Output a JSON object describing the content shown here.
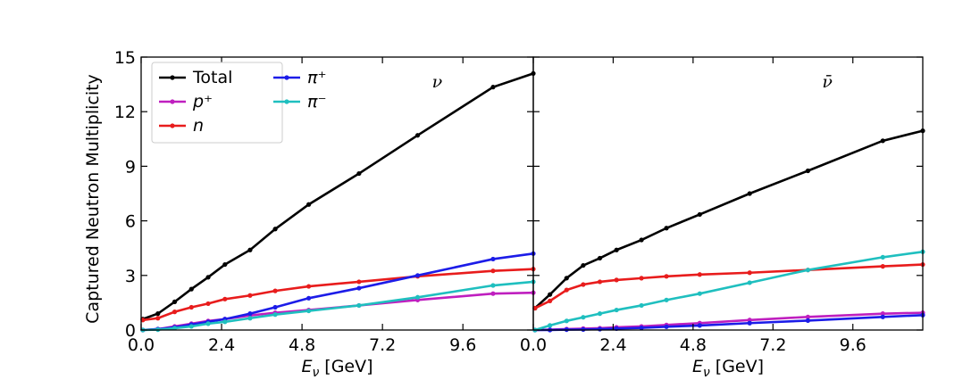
{
  "chart_data": [
    {
      "type": "line",
      "ylabel": "Captured Neutron Multiplicity",
      "xlabel_symbol": "E",
      "xlabel_subscript": "ν",
      "xlabel_unit": "[GeV]",
      "annotation": "ν",
      "legend": "upper left",
      "xlim": [
        0,
        11.7
      ],
      "ylim": [
        0,
        15
      ],
      "xticks": [
        {
          "value": 0,
          "label": "0.0"
        },
        2.4,
        4.8,
        7.2,
        9.6
      ],
      "yticks": [
        0,
        3,
        6,
        9,
        12,
        15
      ],
      "x": [
        0.05,
        0.5,
        1.0,
        1.5,
        2.0,
        2.5,
        3.25,
        4.0,
        5.0,
        6.5,
        8.25,
        10.5,
        11.7
      ],
      "series": [
        {
          "name": "Total",
          "color": "#000000",
          "values": [
            0.6,
            0.9,
            1.55,
            2.25,
            2.9,
            3.6,
            4.4,
            5.55,
            6.9,
            8.6,
            10.7,
            13.35,
            14.1
          ]
        },
        {
          "name": "p⁺",
          "color": "#bf1fbf",
          "values": [
            0,
            0.05,
            0.2,
            0.35,
            0.5,
            0.6,
            0.8,
            0.95,
            1.1,
            1.35,
            1.65,
            2.0,
            2.05
          ]
        },
        {
          "name": "n",
          "color": "#e81c1c",
          "values": [
            0.55,
            0.65,
            1.0,
            1.25,
            1.45,
            1.7,
            1.9,
            2.15,
            2.4,
            2.65,
            2.95,
            3.25,
            3.35
          ]
        },
        {
          "name": "π⁺",
          "color": "#1c1ce8",
          "values": [
            0,
            0.05,
            0.15,
            0.3,
            0.45,
            0.6,
            0.9,
            1.25,
            1.75,
            2.3,
            3.0,
            3.9,
            4.2
          ]
        },
        {
          "name": "π⁻",
          "color": "#1fbfbf",
          "values": [
            0,
            0.02,
            0.1,
            0.2,
            0.35,
            0.45,
            0.65,
            0.85,
            1.05,
            1.35,
            1.8,
            2.45,
            2.65
          ]
        }
      ]
    },
    {
      "type": "line",
      "xlabel_symbol": "E",
      "xlabel_subscript": "ν",
      "xlabel_unit": "[GeV]",
      "annotation": "ν̄",
      "xlim": [
        0,
        11.7
      ],
      "ylim": [
        0,
        15
      ],
      "xticks": [
        {
          "value": 0,
          "label": "0.0"
        },
        2.4,
        4.8,
        7.2,
        9.6
      ],
      "x": [
        0.05,
        0.5,
        1.0,
        1.5,
        2.0,
        2.5,
        3.25,
        4.0,
        5.0,
        6.5,
        8.25,
        10.5,
        11.7
      ],
      "series": [
        {
          "name": "Total",
          "color": "#000000",
          "values": [
            1.2,
            1.95,
            2.85,
            3.55,
            3.95,
            4.4,
            4.95,
            5.6,
            6.35,
            7.5,
            8.75,
            10.4,
            10.95
          ]
        },
        {
          "name": "p⁺",
          "color": "#bf1fbf",
          "values": [
            0,
            0.02,
            0.05,
            0.08,
            0.1,
            0.15,
            0.2,
            0.28,
            0.38,
            0.55,
            0.72,
            0.9,
            0.95
          ]
        },
        {
          "name": "n",
          "color": "#e81c1c",
          "values": [
            1.2,
            1.6,
            2.2,
            2.5,
            2.65,
            2.75,
            2.85,
            2.95,
            3.05,
            3.15,
            3.3,
            3.5,
            3.6
          ]
        },
        {
          "name": "π⁺",
          "color": "#1c1ce8",
          "values": [
            0,
            0,
            0.02,
            0.03,
            0.05,
            0.08,
            0.12,
            0.18,
            0.25,
            0.38,
            0.52,
            0.72,
            0.82
          ]
        },
        {
          "name": "π⁻",
          "color": "#1fbfbf",
          "values": [
            0,
            0.25,
            0.5,
            0.7,
            0.9,
            1.1,
            1.35,
            1.65,
            2.0,
            2.6,
            3.3,
            4.0,
            4.3
          ]
        }
      ]
    }
  ]
}
